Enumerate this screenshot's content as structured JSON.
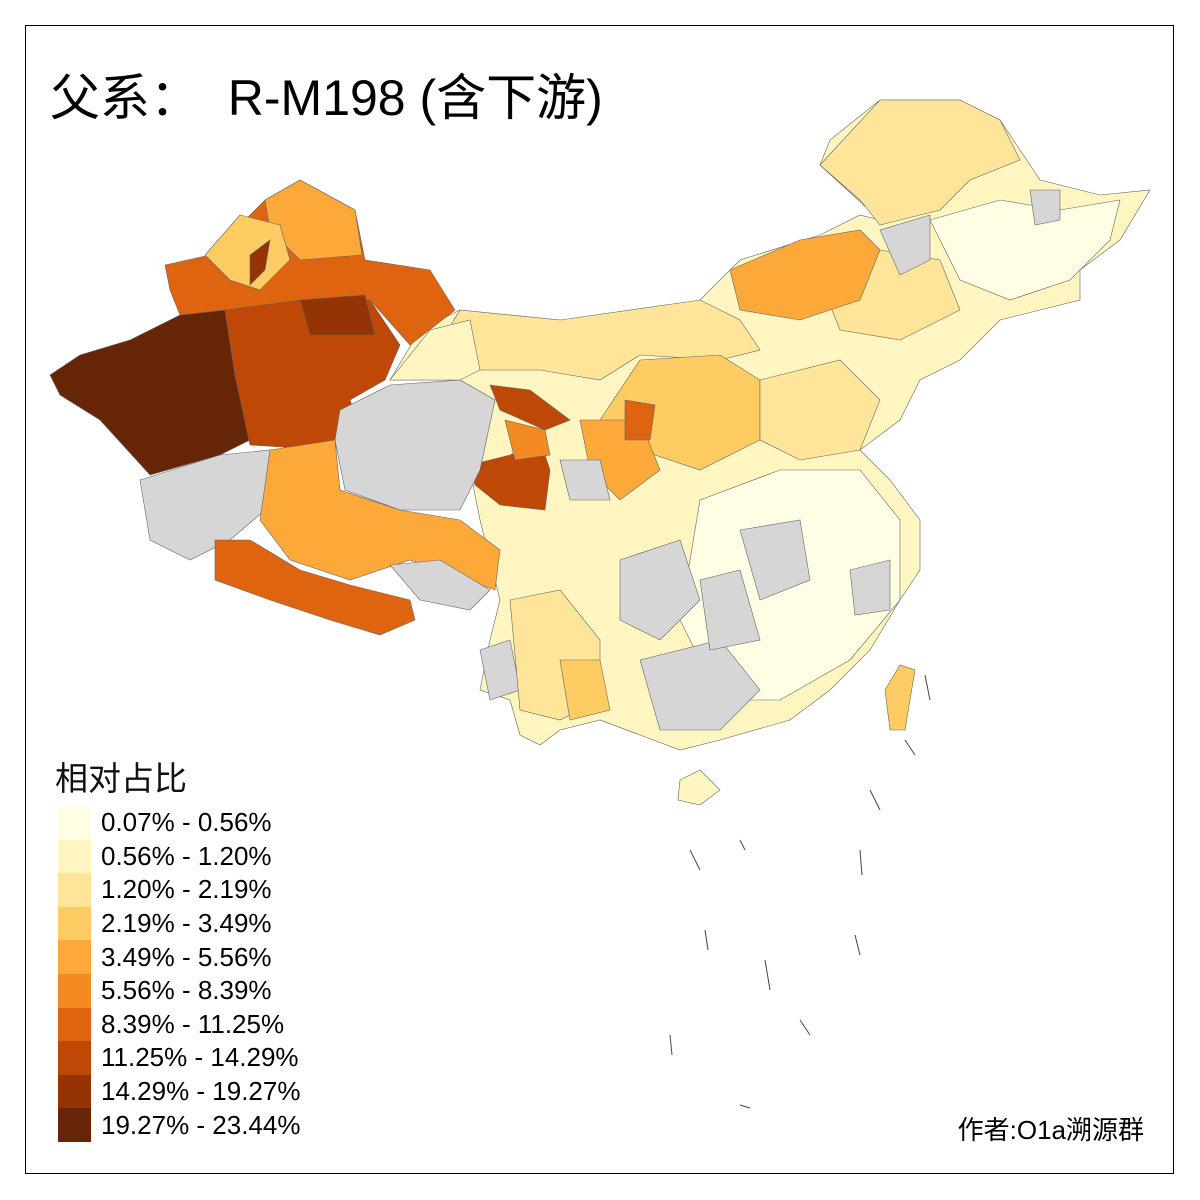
{
  "title": "父系：  R-M198 (含下游)",
  "legend": {
    "title": "相对占比",
    "classes": [
      {
        "label": "0.07% - 0.56%",
        "color": "#FFFDE4"
      },
      {
        "label": "0.56% - 1.20%",
        "color": "#FFF5C0"
      },
      {
        "label": "1.20% - 2.19%",
        "color": "#FEE59A"
      },
      {
        "label": "2.19% - 3.49%",
        "color": "#FECC62"
      },
      {
        "label": "3.49% - 5.56%",
        "color": "#FCA93A"
      },
      {
        "label": "5.56% - 8.39%",
        "color": "#F48A22"
      },
      {
        "label": "8.39% - 11.25%",
        "color": "#DF6410"
      },
      {
        "label": "11.25% - 14.29%",
        "color": "#C04806"
      },
      {
        "label": "14.29% - 19.27%",
        "color": "#943404"
      },
      {
        "label": "19.27% - 23.44%",
        "color": "#672507"
      }
    ],
    "no_data_color": "#D6D6D6"
  },
  "credit": "作者:O1a溯源群"
}
